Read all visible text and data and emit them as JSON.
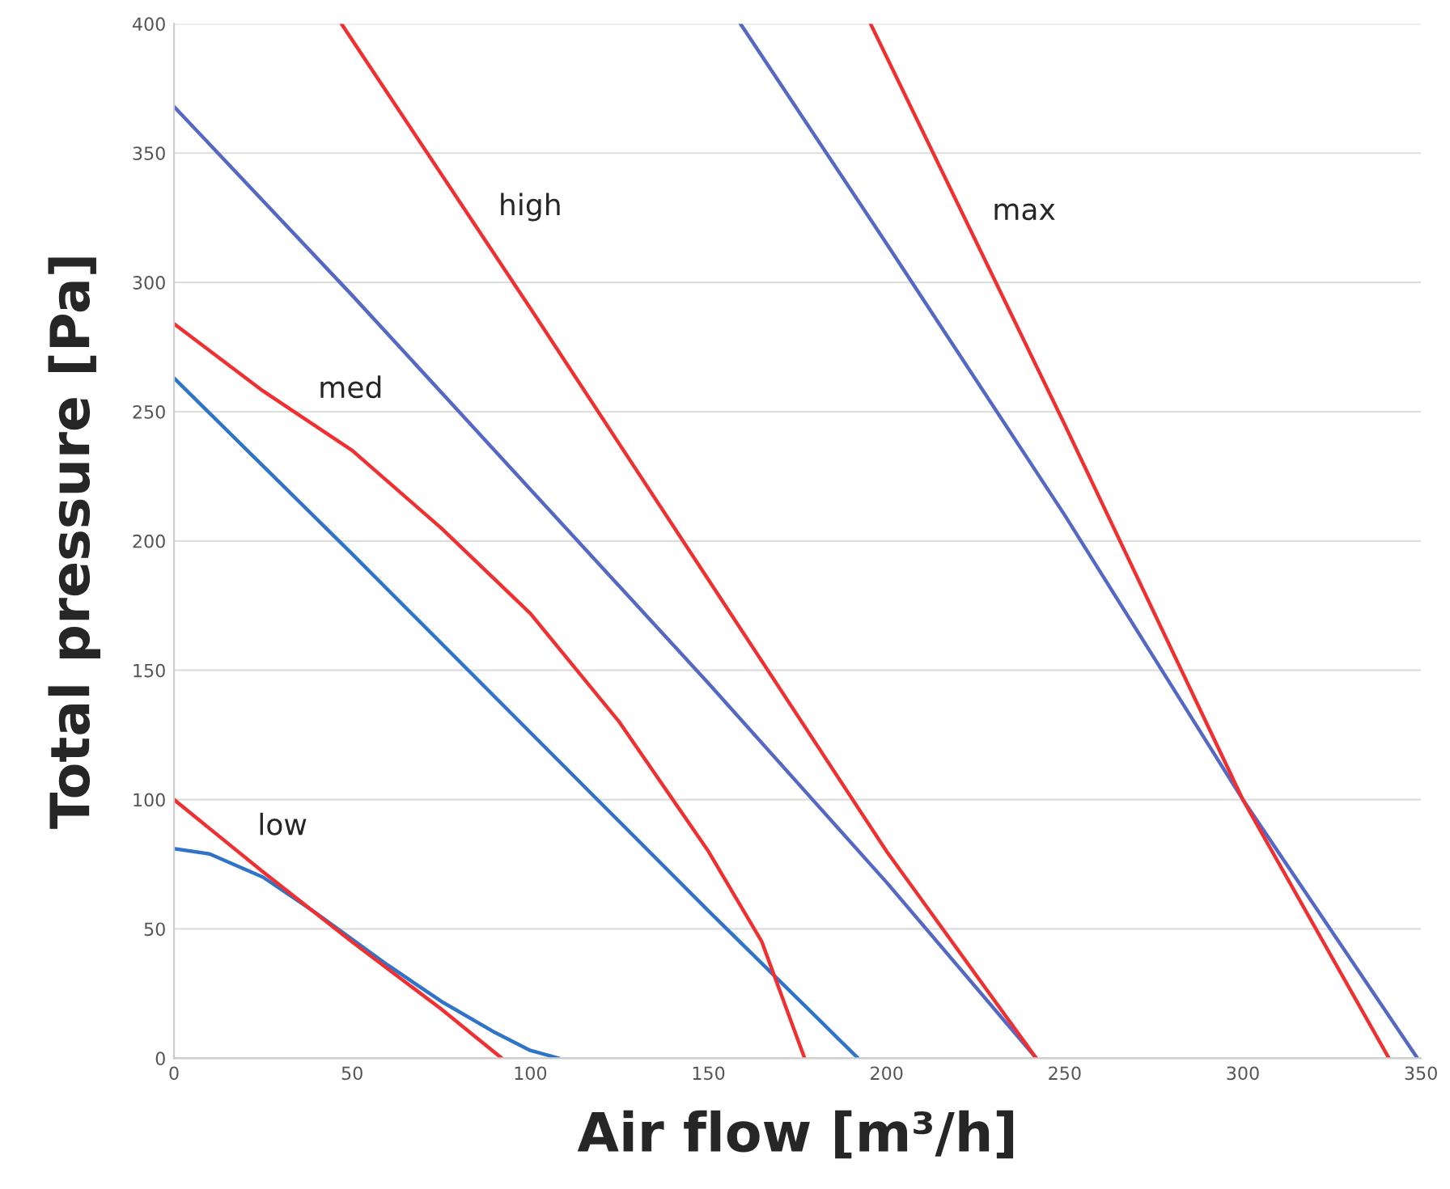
{
  "chart_data": {
    "type": "line",
    "xlabel": "Air flow [m³/h]",
    "ylabel": "Total pressure [Pa]",
    "xlim": [
      0,
      350
    ],
    "ylim": [
      0,
      400
    ],
    "xticks": [
      0,
      50,
      100,
      150,
      200,
      250,
      300,
      350
    ],
    "yticks": [
      0,
      50,
      100,
      150,
      200,
      250,
      300,
      350,
      400
    ],
    "grid": "y",
    "series": [
      {
        "color": "#2f74c9",
        "x": [
          0,
          10,
          25,
          40,
          50,
          60,
          75,
          90,
          100,
          108
        ],
        "values": [
          81,
          79,
          70,
          56,
          46,
          36,
          22,
          10,
          3,
          0
        ]
      },
      {
        "name": "low",
        "color": "#f03030",
        "x": [
          0,
          25,
          50,
          75,
          92
        ],
        "values": [
          100,
          72,
          45,
          19,
          0
        ]
      },
      {
        "color": "#2f74c9",
        "x": [
          0,
          50,
          100,
          150,
          192
        ],
        "values": [
          263,
          195,
          126,
          57,
          0
        ]
      },
      {
        "name": "med",
        "color": "#f03030",
        "x": [
          0,
          25,
          50,
          75,
          100,
          125,
          150,
          165,
          177
        ],
        "values": [
          284,
          258,
          235,
          205,
          172,
          130,
          80,
          45,
          0
        ]
      },
      {
        "color": "#5468c4",
        "x": [
          0,
          50,
          100,
          150,
          200,
          242
        ],
        "values": [
          368,
          295,
          220,
          145,
          68,
          0
        ]
      },
      {
        "name": "high",
        "color": "#f03030",
        "x": [
          47,
          100,
          150,
          200,
          242
        ],
        "values": [
          400,
          290,
          185,
          80,
          0
        ]
      },
      {
        "color": "#5468c4",
        "x": [
          159,
          200,
          250,
          300,
          349
        ],
        "values": [
          400,
          315,
          210,
          100,
          0
        ]
      },
      {
        "name": "max",
        "color": "#f03030",
        "x": [
          195.5,
          250,
          300,
          341
        ],
        "values": [
          400,
          245,
          100,
          0
        ]
      }
    ]
  }
}
